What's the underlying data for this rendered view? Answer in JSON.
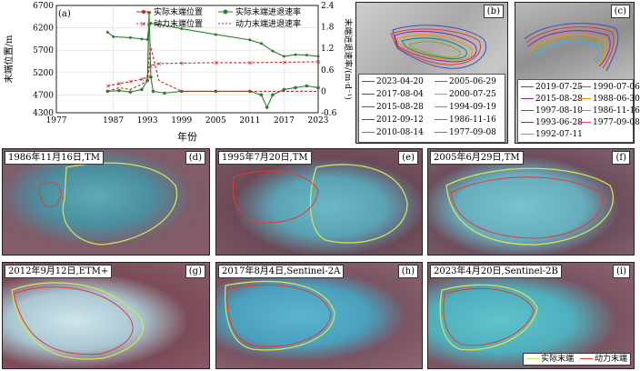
{
  "panel_a": {
    "label": "(a)",
    "legend": [
      "实际末端位置",
      "实际末端进退速率",
      "动力末端位置",
      "动力末端进退速率"
    ],
    "xlabel": "年份",
    "ylabel_left": "末端位置/m",
    "ylabel_right": "末端进退速率/(m·d⁻¹)",
    "xticks": [
      "1977",
      "1987",
      "1993",
      "1999",
      "2005",
      "2011",
      "2017",
      "2023"
    ],
    "yticks_left": [
      "4300",
      "4700",
      "5200",
      "5700",
      "6200",
      "6700"
    ],
    "yticks_right": [
      "-0.6",
      "0",
      "0.6",
      "1.2",
      "1.8",
      "2.4"
    ],
    "colors": {
      "actual": "#2e7d32",
      "dynamic": "#c62828"
    }
  },
  "chart_data": {
    "type": "line",
    "title": "",
    "xlabel": "年份",
    "ylabel": "末端位置/m",
    "ylabel_right": "末端进退速率/(m·d⁻¹)",
    "xlim": [
      1977,
      2023
    ],
    "ylim": [
      4300,
      6700
    ],
    "ylim_right": [
      -0.6,
      2.4
    ],
    "series": [
      {
        "name": "实际末端位置",
        "axis": "left",
        "x": [
          1986,
          1987,
          1990,
          1992,
          1993,
          1993.3,
          1993.6,
          1995,
          1999,
          2005,
          2011,
          2013,
          2015,
          2017,
          2019,
          2021,
          2023
        ],
        "values": [
          6100,
          6000,
          5980,
          5950,
          5940,
          6250,
          6300,
          6280,
          6180,
          6050,
          5930,
          5850,
          5680,
          5560,
          5600,
          5590,
          5560
        ]
      },
      {
        "name": "动力末端位置",
        "axis": "left",
        "x": [
          1986,
          1988,
          1990,
          1992,
          1993,
          1993.5,
          1995,
          1999,
          2005,
          2011,
          2017,
          2023
        ],
        "values": [
          4900,
          4950,
          5000,
          5050,
          5100,
          5350,
          5400,
          5410,
          5420,
          5420,
          5430,
          5440
        ]
      },
      {
        "name": "实际末端进退速率",
        "axis": "right",
        "x": [
          1986,
          1988,
          1990,
          1992,
          1993,
          1993.3,
          1993.6,
          1994,
          1996,
          1999,
          2005,
          2011,
          2013,
          2014,
          2015,
          2017,
          2019,
          2021,
          2023
        ],
        "values": [
          0.0,
          0.02,
          -0.02,
          0.05,
          0.3,
          2.2,
          0.4,
          0.0,
          -0.05,
          0.0,
          0.0,
          0.0,
          -0.1,
          -0.45,
          -0.1,
          0.05,
          0.1,
          0.15,
          0.1
        ]
      },
      {
        "name": "动力末端进退速率",
        "axis": "right",
        "x": [
          1986,
          1988,
          1990,
          1992,
          1993,
          1993.5,
          1995,
          1999,
          2005,
          2011,
          2017,
          2023
        ],
        "values": [
          0.0,
          0.1,
          0.05,
          0.2,
          0.3,
          1.3,
          0.3,
          0.0,
          0.0,
          0.0,
          0.0,
          0.0
        ]
      }
    ]
  },
  "panel_b": {
    "label": "(b)",
    "legend": [
      {
        "date": "2023-04-20",
        "color": "#3f51b5"
      },
      {
        "date": "2005-06-29",
        "color": "#e53935"
      },
      {
        "date": "2017-08-04",
        "color": "#8e24aa"
      },
      {
        "date": "2000-07-25",
        "color": "#fb8c00"
      },
      {
        "date": "2015-08-28",
        "color": "#00897b"
      },
      {
        "date": "1994-09-19",
        "color": "#9e9d24"
      },
      {
        "date": "2012-09-12",
        "color": "#6d4c41"
      },
      {
        "date": "1986-11-16",
        "color": "#ec407a"
      },
      {
        "date": "2010-08-14",
        "color": "#1e88e5"
      },
      {
        "date": "1977-09-08",
        "color": "#43a047"
      }
    ]
  },
  "panel_c": {
    "label": "(c)",
    "legend": [
      {
        "date": "2019-07-25",
        "color": "#3f51b5"
      },
      {
        "date": "1990-07-06",
        "color": "#e53935"
      },
      {
        "date": "2015-08-28",
        "color": "#8e24aa"
      },
      {
        "date": "1988-06-30",
        "color": "#fb8c00"
      },
      {
        "date": "1997-08-10",
        "color": "#00897b"
      },
      {
        "date": "1986-11-16",
        "color": "#9e9d24"
      },
      {
        "date": "1993-06-28",
        "color": "#6d4c41"
      },
      {
        "date": "1977-09-08",
        "color": "#ec407a"
      },
      {
        "date": "1992-07-11",
        "color": "#29b6f6"
      }
    ]
  },
  "images": [
    {
      "label": "(d)",
      "date": "1986年11月16日,TM"
    },
    {
      "label": "(e)",
      "date": "1995年7月20日,TM"
    },
    {
      "label": "(f)",
      "date": "2005年6月29日,TM"
    },
    {
      "label": "(g)",
      "date": "2012年9月12日,ETM+"
    },
    {
      "label": "(h)",
      "date": "2017年8月4日,Sentinel-2A"
    },
    {
      "label": "(i)",
      "date": "2023年4月20日,Sentinel-2B"
    }
  ],
  "bottom_legend": {
    "actual": "实际末端",
    "dynamic": "动力末端",
    "actual_color": "#d4e157",
    "dynamic_color": "#e53935"
  }
}
